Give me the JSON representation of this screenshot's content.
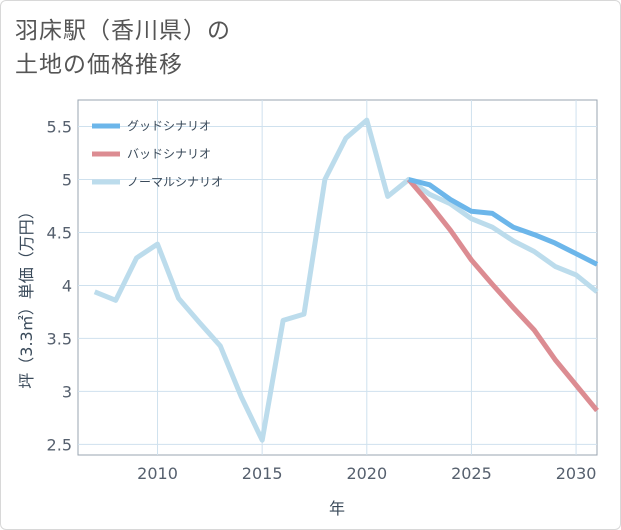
{
  "title_lines": [
    "羽床駅（香川県）の",
    "土地の価格推移"
  ],
  "chart_data": {
    "type": "line",
    "title": "羽床駅（香川県）の土地の価格推移",
    "xlabel": "年",
    "ylabel": "坪（3.3㎡）単価（万円）",
    "xlim": [
      2006.2,
      2031
    ],
    "ylim": [
      2.4,
      5.75
    ],
    "xticks": [
      2010,
      2015,
      2020,
      2025,
      2030
    ],
    "yticks": [
      2.5,
      3,
      3.5,
      4,
      4.5,
      5,
      5.5
    ],
    "legend_position": "top-left",
    "series": [
      {
        "name": "グッドシナリオ",
        "color": "#6cb6ea",
        "x": [
          2022,
          2023,
          2024,
          2025,
          2026,
          2027,
          2028,
          2029,
          2030,
          2031
        ],
        "values": [
          5.0,
          4.95,
          4.81,
          4.7,
          4.68,
          4.55,
          4.48,
          4.4,
          4.3,
          4.2
        ]
      },
      {
        "name": "バッドシナリオ",
        "color": "#dc8c92",
        "x": [
          2022,
          2023,
          2024,
          2025,
          2026,
          2027,
          2028,
          2029,
          2030,
          2031
        ],
        "values": [
          5.0,
          4.77,
          4.52,
          4.24,
          4.01,
          3.79,
          3.58,
          3.3,
          3.06,
          2.82
        ]
      },
      {
        "name": "ノーマルシナリオ",
        "color": "#bcdcec",
        "x": [
          2007,
          2008,
          2009,
          2010,
          2011,
          2012,
          2013,
          2014,
          2015,
          2016,
          2017,
          2018,
          2019,
          2020,
          2021,
          2022,
          2023,
          2024,
          2025,
          2026,
          2027,
          2028,
          2029,
          2030,
          2031
        ],
        "values": [
          3.94,
          3.86,
          4.26,
          4.39,
          3.88,
          3.65,
          3.43,
          2.95,
          2.54,
          3.67,
          3.73,
          5.0,
          5.39,
          5.56,
          4.84,
          5.0,
          4.86,
          4.77,
          4.63,
          4.55,
          4.42,
          4.32,
          4.18,
          4.1,
          3.94
        ]
      }
    ]
  }
}
